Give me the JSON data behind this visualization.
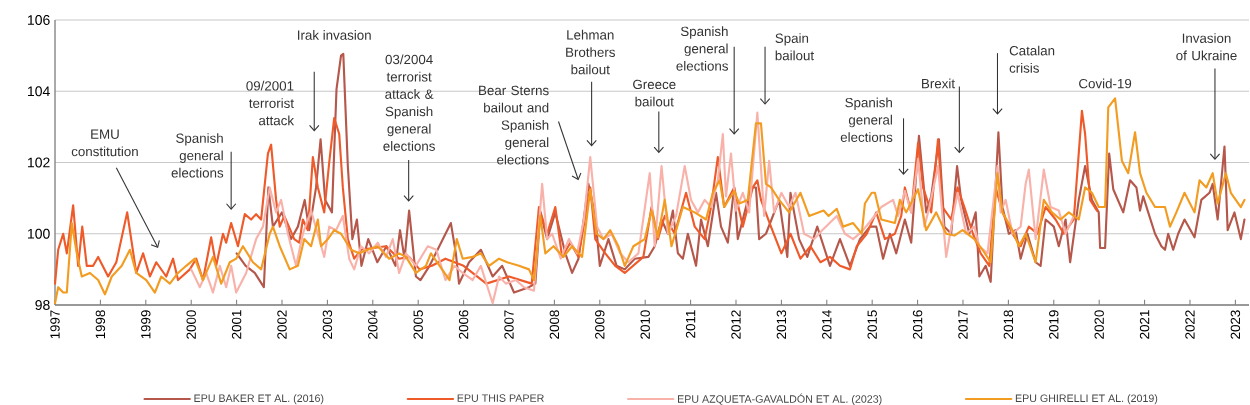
{
  "chart_data": {
    "type": "line",
    "xlim": [
      1997,
      2023.3
    ],
    "ylim": [
      98,
      106
    ],
    "xticks": [
      1997,
      1998,
      1999,
      2000,
      2001,
      2002,
      2003,
      2004,
      2005,
      2006,
      2007,
      2008,
      2009,
      2010,
      2011,
      2012,
      2013,
      2014,
      2015,
      2016,
      2017,
      2018,
      2019,
      2020,
      2021,
      2022,
      2023
    ],
    "yticks": [
      98,
      100,
      102,
      104,
      106
    ],
    "grid": "y",
    "legend": "bottom",
    "series": [
      {
        "name": "EPU BAKER ET AL. (2016)",
        "color": "#b5584b",
        "x": [
          2001.0,
          2001.2,
          2001.4,
          2001.6,
          2001.7,
          2001.8,
          2002.0,
          2002.2,
          2002.35,
          2002.5,
          2002.6,
          2002.75,
          2002.85,
          2002.95,
          2003.1,
          2003.2,
          2003.3,
          2003.35,
          2003.45,
          2003.55,
          2003.65,
          2003.75,
          2003.9,
          2004.1,
          2004.3,
          2004.5,
          2004.6,
          2004.7,
          2004.8,
          2004.95,
          2005.05,
          2005.25,
          2005.72,
          2005.83,
          2005.9,
          2006.12,
          2006.38,
          2006.64,
          2006.85,
          2007.11,
          2007.44,
          2007.58,
          2007.69,
          2007.84,
          2008.02,
          2008.24,
          2008.39,
          2008.53,
          2008.75,
          2008.9,
          2009.0,
          2009.19,
          2009.37,
          2009.55,
          2009.77,
          2010.07,
          2010.21,
          2010.36,
          2010.5,
          2010.61,
          2010.72,
          2010.83,
          2010.94,
          2011.12,
          2011.23,
          2011.38,
          2011.56,
          2011.67,
          2011.82,
          2011.96,
          2012.04,
          2012.22,
          2012.33,
          2012.44,
          2012.51,
          2012.66,
          2012.95,
          2013.13,
          2013.2,
          2013.39,
          2013.57,
          2013.79,
          2014.07,
          2014.29,
          2014.51,
          2014.73,
          2014.95,
          2015.09,
          2015.24,
          2015.39,
          2015.53,
          2015.72,
          2015.86,
          2016.03,
          2016.19,
          2016.3,
          2016.47,
          2016.59,
          2016.74,
          2016.87,
          2016.96,
          2017.14,
          2017.28,
          2017.36,
          2017.5,
          2017.61,
          2017.78,
          2017.87,
          2018.01,
          2018.16,
          2018.27,
          2018.42,
          2018.6,
          2018.71,
          2018.82,
          2019.0,
          2019.11,
          2019.26,
          2019.36,
          2019.55,
          2019.69,
          2019.84,
          2019.99,
          2020.02,
          2020.13,
          2020.22,
          2020.31,
          2020.53,
          2020.68,
          2020.82,
          2020.9,
          2020.97,
          2021.08,
          2021.23,
          2021.37,
          2021.45,
          2021.52,
          2021.63,
          2021.74,
          2021.88,
          2022.1,
          2022.25,
          2022.43,
          2022.5,
          2022.61,
          2022.76,
          2022.83,
          2022.98,
          2023.12,
          2023.2
        ],
        "values": [
          99.45,
          99.1,
          98.9,
          98.5,
          101.3,
          100.2,
          100.6,
          99.85,
          100.2,
          100.95,
          100.1,
          101.3,
          102.65,
          100.95,
          100.6,
          104.05,
          105.0,
          105.05,
          101.9,
          99.85,
          100.4,
          99.1,
          99.85,
          99.2,
          99.65,
          99.1,
          100.1,
          99.3,
          100.65,
          98.8,
          98.7,
          99.1,
          100.3,
          99.45,
          98.6,
          99.2,
          99.55,
          98.8,
          99.1,
          98.35,
          98.5,
          98.6,
          100.6,
          99.85,
          100.6,
          99.45,
          98.9,
          99.3,
          101.4,
          100.5,
          99.1,
          99.85,
          99.1,
          99.0,
          99.3,
          99.35,
          99.65,
          100.4,
          100.0,
          100.65,
          99.45,
          99.3,
          100.0,
          99.1,
          100.4,
          99.65,
          101.15,
          100.2,
          99.75,
          101.3,
          99.85,
          100.75,
          101.3,
          101.3,
          99.85,
          100.0,
          100.95,
          99.35,
          101.15,
          99.85,
          99.35,
          100.2,
          99.1,
          99.85,
          99.1,
          99.85,
          100.2,
          100.2,
          99.3,
          100.0,
          99.45,
          100.4,
          99.75,
          102.75,
          100.6,
          101.05,
          102.65,
          100.2,
          100.0,
          101.9,
          100.95,
          100.0,
          100.6,
          98.8,
          99.1,
          98.65,
          102.85,
          100.75,
          100.0,
          100.1,
          99.3,
          100.0,
          99.2,
          99.1,
          100.4,
          100.2,
          99.65,
          100.4,
          99.2,
          100.95,
          101.9,
          100.95,
          100.6,
          99.6,
          99.6,
          102.25,
          101.25,
          100.6,
          101.5,
          101.3,
          100.65,
          101.05,
          100.6,
          100.0,
          99.65,
          99.55,
          100.0,
          99.55,
          100.0,
          100.4,
          99.9,
          100.95,
          101.15,
          101.4,
          100.4,
          102.45,
          100.1,
          100.6,
          99.85,
          100.4
        ]
      },
      {
        "name": "EPU THIS PAPER",
        "color": "#ef5a2a",
        "x": [
          1997.0,
          1997.07,
          1997.18,
          1997.26,
          1997.4,
          1997.51,
          1997.6,
          1997.7,
          1997.84,
          1997.95,
          1998.17,
          1998.35,
          1998.59,
          1998.79,
          1998.94,
          1999.09,
          1999.23,
          1999.45,
          1999.6,
          1999.71,
          1999.97,
          2000.11,
          2000.26,
          2000.44,
          2000.55,
          2000.7,
          2000.77,
          2000.88,
          2001.03,
          2001.18,
          2001.32,
          2001.43,
          2001.54,
          2001.69,
          2001.76,
          2001.87,
          2001.95,
          2002.05,
          2002.27,
          2002.38,
          2002.46,
          2002.57,
          2002.68,
          2002.79,
          2002.93,
          2003.04,
          2003.15,
          2003.26,
          2003.34,
          2003.45,
          2003.59,
          2003.74,
          2004.29,
          2004.58,
          2004.8,
          2005.03,
          2005.3,
          2005.6,
          2006.0,
          2006.5,
          2007.0,
          2007.5,
          2007.66,
          2007.84,
          2008.02,
          2008.17,
          2008.35,
          2008.53,
          2008.79,
          2008.9,
          2009.12,
          2009.34,
          2009.55,
          2009.96,
          2010.14,
          2010.28,
          2010.43,
          2010.65,
          2010.9,
          2011.09,
          2011.31,
          2011.45,
          2011.6,
          2011.74,
          2011.96,
          2012.15,
          2012.37,
          2012.47,
          2012.55,
          2012.77,
          2013.0,
          2013.2,
          2013.42,
          2013.64,
          2013.86,
          2014.07,
          2014.29,
          2014.51,
          2014.66,
          2014.88,
          2015.09,
          2015.28,
          2015.5,
          2015.64,
          2015.72,
          2015.86,
          2016.01,
          2016.12,
          2016.3,
          2016.45,
          2016.55,
          2016.74,
          2016.88,
          2017.03,
          2017.22,
          2017.39,
          2017.58,
          2017.72,
          2017.87,
          2018.09,
          2018.27,
          2018.45,
          2018.64,
          2018.82,
          2019.04,
          2019.22,
          2019.44,
          2019.62,
          2019.69,
          2019.8,
          2019.95
        ],
        "values": [
          98.6,
          99.55,
          100.0,
          99.45,
          100.8,
          99.1,
          100.2,
          99.1,
          99.1,
          99.35,
          98.8,
          99.2,
          100.6,
          98.9,
          99.45,
          98.8,
          99.2,
          98.8,
          99.3,
          98.7,
          99.0,
          99.3,
          98.7,
          99.9,
          99.1,
          100.0,
          99.75,
          100.3,
          99.65,
          100.55,
          100.4,
          100.55,
          100.4,
          102.25,
          102.5,
          100.95,
          100.2,
          100.5,
          99.85,
          99.75,
          100.4,
          100.1,
          102.15,
          101.3,
          100.6,
          102.0,
          103.25,
          102.8,
          101.3,
          99.85,
          99.3,
          99.55,
          99.65,
          99.3,
          99.35,
          99.0,
          99.1,
          99.3,
          99.1,
          98.6,
          98.8,
          98.6,
          100.75,
          100.0,
          100.75,
          99.35,
          99.75,
          99.35,
          101.3,
          99.85,
          99.45,
          99.1,
          98.9,
          99.35,
          100.75,
          99.85,
          100.5,
          100.0,
          101.15,
          100.2,
          99.85,
          100.75,
          102.15,
          100.75,
          101.3,
          100.2,
          101.3,
          101.5,
          100.95,
          100.2,
          99.45,
          100.0,
          99.3,
          99.65,
          99.2,
          99.35,
          99.1,
          99.0,
          99.65,
          100.0,
          100.6,
          99.85,
          100.0,
          100.5,
          101.3,
          100.6,
          102.55,
          101.3,
          100.6,
          102.65,
          100.75,
          100.4,
          101.3,
          100.75,
          100.0,
          99.45,
          99.1,
          101.3,
          100.6,
          100.0,
          99.65,
          100.2,
          100.0,
          100.75,
          100.4,
          100.0,
          100.4,
          103.45,
          102.8,
          100.95,
          100.65
        ]
      },
      {
        "name": "EPU AZQUETA-GAVALDÓN ET AL. (2023)",
        "color": "#f8b2aa",
        "x": [
          2000.0,
          2000.19,
          2000.33,
          2000.48,
          2000.63,
          2000.77,
          2000.88,
          2000.99,
          2001.21,
          2001.43,
          2001.58,
          2001.73,
          2001.87,
          2001.98,
          2002.13,
          2002.31,
          2002.46,
          2002.64,
          2002.82,
          2002.93,
          2003.04,
          2003.19,
          2003.34,
          2003.48,
          2003.59,
          2003.74,
          2003.92,
          2004.11,
          2004.29,
          2004.44,
          2004.58,
          2004.73,
          2004.95,
          2005.21,
          2005.4,
          2005.6,
          2005.8,
          2005.98,
          2006.2,
          2006.38,
          2006.64,
          2006.78,
          2006.93,
          2007.15,
          2007.33,
          2007.55,
          2007.73,
          2007.84,
          2007.95,
          2008.14,
          2008.32,
          2008.5,
          2008.65,
          2008.79,
          2008.94,
          2009.08,
          2009.26,
          2009.45,
          2009.63,
          2009.85,
          2010.1,
          2010.21,
          2010.36,
          2010.5,
          2010.68,
          2010.87,
          2011.01,
          2011.16,
          2011.31,
          2011.45,
          2011.6,
          2011.71,
          2011.78,
          2011.89,
          2012.0,
          2012.15,
          2012.29,
          2012.47,
          2012.62,
          2012.73,
          2012.84,
          2013.0,
          2013.17,
          2013.31,
          2013.5,
          2013.72,
          2013.9,
          2014.22,
          2014.4,
          2014.58,
          2014.8,
          2014.99,
          2015.2,
          2015.46,
          2015.57,
          2015.72,
          2015.86,
          2016.01,
          2016.15,
          2016.26,
          2016.45,
          2016.63,
          2016.77,
          2016.88,
          2017.07,
          2017.25,
          2017.36,
          2017.54,
          2017.76,
          2017.83,
          2017.94,
          2018.09,
          2018.27,
          2018.38,
          2018.45,
          2018.6,
          2018.78,
          2018.93,
          2019.11,
          2019.26,
          2019.44
        ],
        "values": [
          99.0,
          98.5,
          98.9,
          98.35,
          99.1,
          98.5,
          99.1,
          98.35,
          98.9,
          99.85,
          100.2,
          101.3,
          100.6,
          100.95,
          100.0,
          99.1,
          100.0,
          100.65,
          99.85,
          99.35,
          100.2,
          100.1,
          100.5,
          99.3,
          99.0,
          99.65,
          99.45,
          99.75,
          99.35,
          99.85,
          98.9,
          99.45,
          99.1,
          99.65,
          99.55,
          98.7,
          99.1,
          98.9,
          98.7,
          99.1,
          98.05,
          98.8,
          98.6,
          98.7,
          98.5,
          98.4,
          101.4,
          99.85,
          100.0,
          99.3,
          99.85,
          99.45,
          100.4,
          102.15,
          100.2,
          99.85,
          100.0,
          99.45,
          99.2,
          99.45,
          101.7,
          99.65,
          101.9,
          100.0,
          100.5,
          101.9,
          100.95,
          100.6,
          100.95,
          100.75,
          101.5,
          102.8,
          101.05,
          102.25,
          100.65,
          101.15,
          100.6,
          103.4,
          100.5,
          102.05,
          100.6,
          101.15,
          100.75,
          101.15,
          100.0,
          99.85,
          100.1,
          100.5,
          100.0,
          99.85,
          100.1,
          100.4,
          100.75,
          100.95,
          100.5,
          101.2,
          100.6,
          102.1,
          100.2,
          100.75,
          101.9,
          99.35,
          100.4,
          101.15,
          100.0,
          100.2,
          99.65,
          99.45,
          101.9,
          100.6,
          100.95,
          100.0,
          100.2,
          101.4,
          101.8,
          99.85,
          101.8,
          100.75,
          100.65,
          100.0,
          100.5
        ]
      },
      {
        "name": "EPU GHIRELLI ET AL. (2019)",
        "color": "#f29c22",
        "x": [
          1997.0,
          1997.07,
          1997.18,
          1997.26,
          1997.37,
          1997.48,
          1997.59,
          1997.77,
          1997.95,
          1998.1,
          1998.25,
          1998.47,
          1998.65,
          1998.79,
          1999.01,
          1999.2,
          1999.34,
          1999.53,
          1999.71,
          1999.89,
          2000.08,
          2000.26,
          2000.48,
          2000.66,
          2000.85,
          2000.99,
          2001.14,
          2001.36,
          2001.54,
          2001.73,
          2001.8,
          2001.95,
          2002.17,
          2002.35,
          2002.49,
          2002.64,
          2002.79,
          2002.86,
          2003.01,
          2003.15,
          2003.3,
          2003.52,
          2003.7,
          2003.89,
          2004.11,
          2004.36,
          2004.58,
          2004.73,
          2004.95,
          2005.17,
          2005.28,
          2005.69,
          2005.85,
          2005.98,
          2006.2,
          2006.38,
          2006.56,
          2006.78,
          2006.96,
          2007.22,
          2007.44,
          2007.55,
          2007.69,
          2007.8,
          2007.98,
          2008.2,
          2008.39,
          2008.61,
          2008.79,
          2008.93,
          2009.08,
          2009.23,
          2009.41,
          2009.55,
          2009.74,
          2009.99,
          2010.14,
          2010.28,
          2010.43,
          2010.58,
          2010.83,
          2011.09,
          2011.34,
          2011.49,
          2011.64,
          2011.74,
          2011.96,
          2012.07,
          2012.26,
          2012.44,
          2012.55,
          2012.66,
          2012.77,
          2012.95,
          2013.17,
          2013.42,
          2013.61,
          2013.93,
          2014.04,
          2014.22,
          2014.36,
          2014.58,
          2014.77,
          2014.84,
          2014.99,
          2015.06,
          2015.2,
          2015.5,
          2015.61,
          2015.75,
          2016.01,
          2016.19,
          2016.41,
          2016.63,
          2016.81,
          2016.99,
          2017.25,
          2017.43,
          2017.61,
          2017.76,
          2017.87,
          2018.09,
          2018.23,
          2018.38,
          2018.6,
          2018.78,
          2018.96,
          2019.15,
          2019.33,
          2019.55,
          2019.69,
          2019.84,
          2019.99,
          2020.13,
          2020.2,
          2020.35,
          2020.5,
          2020.64,
          2020.79,
          2020.9,
          2021.04,
          2021.23,
          2021.45,
          2021.56,
          2021.7,
          2021.88,
          2022.1,
          2022.21,
          2022.36,
          2022.5,
          2022.61,
          2022.79,
          2022.9,
          2023.12,
          2023.2
        ],
        "values": [
          98.05,
          98.5,
          98.35,
          98.35,
          100.3,
          99.45,
          98.8,
          98.9,
          98.7,
          98.3,
          98.8,
          99.1,
          99.55,
          98.9,
          98.7,
          98.35,
          98.8,
          98.6,
          98.9,
          99.1,
          99.3,
          98.7,
          99.35,
          98.6,
          99.2,
          99.3,
          99.65,
          99.2,
          99.0,
          100.0,
          100.2,
          99.65,
          99.0,
          99.1,
          99.85,
          99.65,
          100.4,
          99.65,
          99.85,
          100.1,
          100.0,
          99.55,
          99.45,
          99.55,
          99.65,
          99.3,
          99.45,
          99.35,
          98.9,
          99.1,
          99.45,
          98.7,
          99.85,
          99.3,
          99.35,
          99.45,
          99.1,
          99.3,
          99.2,
          99.1,
          99.0,
          98.7,
          100.5,
          99.45,
          99.65,
          99.35,
          99.65,
          99.35,
          101.25,
          100.0,
          99.85,
          100.1,
          99.65,
          99.1,
          99.65,
          99.85,
          100.65,
          99.9,
          100.95,
          99.65,
          100.75,
          100.6,
          100.4,
          101.15,
          101.5,
          100.75,
          101.2,
          100.85,
          100.95,
          103.1,
          103.1,
          101.4,
          101.3,
          100.95,
          100.6,
          101.15,
          100.5,
          100.65,
          100.5,
          100.7,
          100.2,
          100.3,
          100.0,
          100.85,
          101.15,
          101.15,
          100.4,
          100.3,
          100.95,
          100.6,
          101.25,
          100.1,
          100.6,
          100.0,
          99.95,
          100.1,
          99.85,
          99.55,
          99.2,
          101.7,
          100.6,
          100.1,
          99.65,
          100.0,
          99.2,
          100.95,
          100.6,
          100.4,
          100.6,
          100.4,
          101.3,
          101.15,
          100.75,
          100.75,
          103.55,
          103.8,
          102.05,
          101.7,
          102.85,
          101.7,
          101.15,
          100.75,
          100.75,
          100.2,
          100.6,
          101.15,
          100.6,
          101.5,
          101.3,
          101.7,
          100.85,
          101.7,
          101.15,
          100.75,
          100.95
        ]
      }
    ],
    "annotations": [
      "EMU constitution",
      "Spanish general elections",
      "09/2001 terrorist attack",
      "Irak invasion",
      "03/2004 terrorist attack & Spanish general elections",
      "Bear Sterns bailout and Spanish general elections",
      "Lehman Brothers bailout",
      "Greece bailout",
      "Spanish general elections",
      "Spain bailout",
      "Spanish general elections",
      "Brexit",
      "Catalan crisis",
      "Covid-19",
      "Invasion of Ukraine"
    ]
  }
}
